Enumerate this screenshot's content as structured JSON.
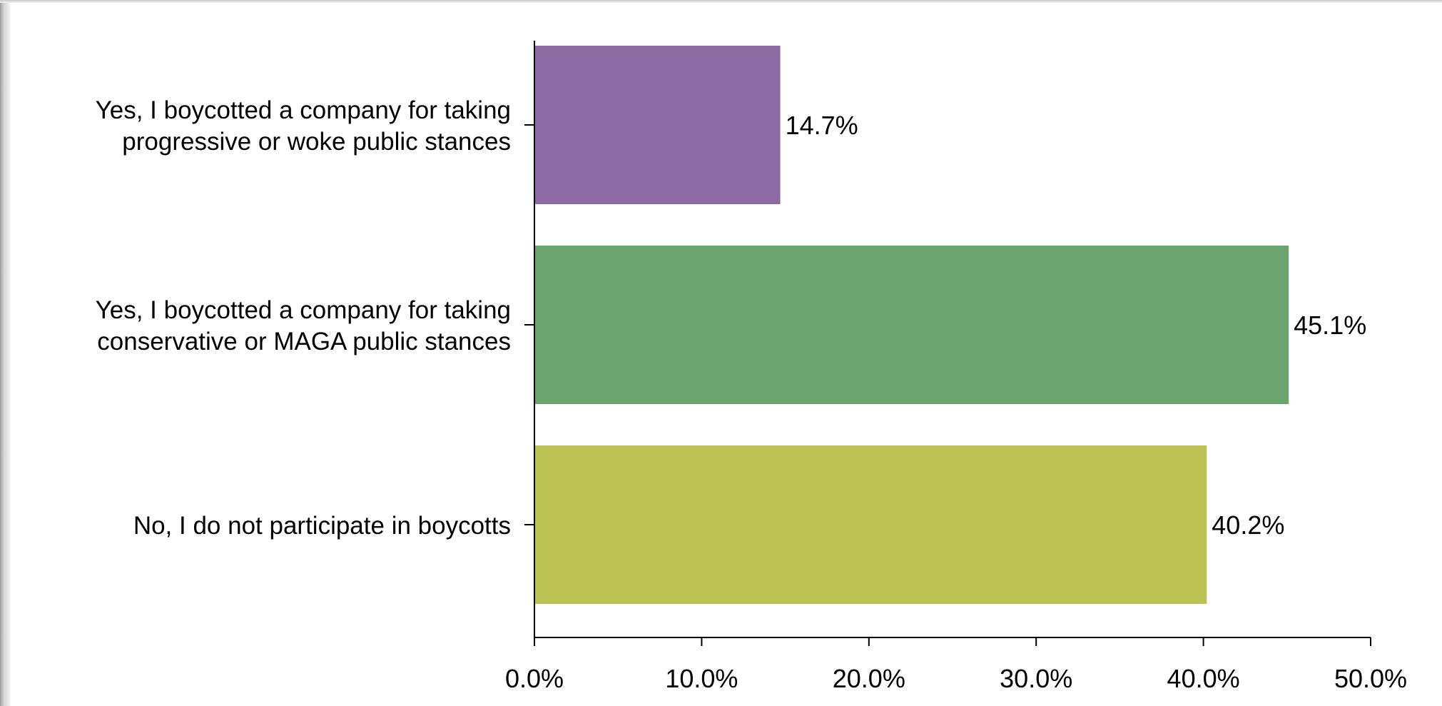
{
  "chart_data": {
    "type": "bar",
    "orientation": "horizontal",
    "categories": [
      [
        "Yes, I boycotted a company for taking",
        "progressive or woke public stances"
      ],
      [
        "Yes, I boycotted a company for taking",
        "conservative or MAGA public stances"
      ],
      [
        "No, I do not participate in boycotts"
      ]
    ],
    "values": [
      14.7,
      45.1,
      40.2
    ],
    "value_labels": [
      "14.7%",
      "45.1%",
      "40.2%"
    ],
    "colors": [
      "#8e6aa4",
      "#6ba36d",
      "#bbc253"
    ],
    "xlim": [
      0,
      50
    ],
    "x_ticks": [
      0,
      10,
      20,
      30,
      40,
      50
    ],
    "x_tick_labels": [
      "0.0%",
      "10.0%",
      "20.0%",
      "30.0%",
      "40.0%",
      "50.0%"
    ],
    "title": "",
    "xlabel": "",
    "ylabel": "",
    "grid": false,
    "legend": "none"
  }
}
